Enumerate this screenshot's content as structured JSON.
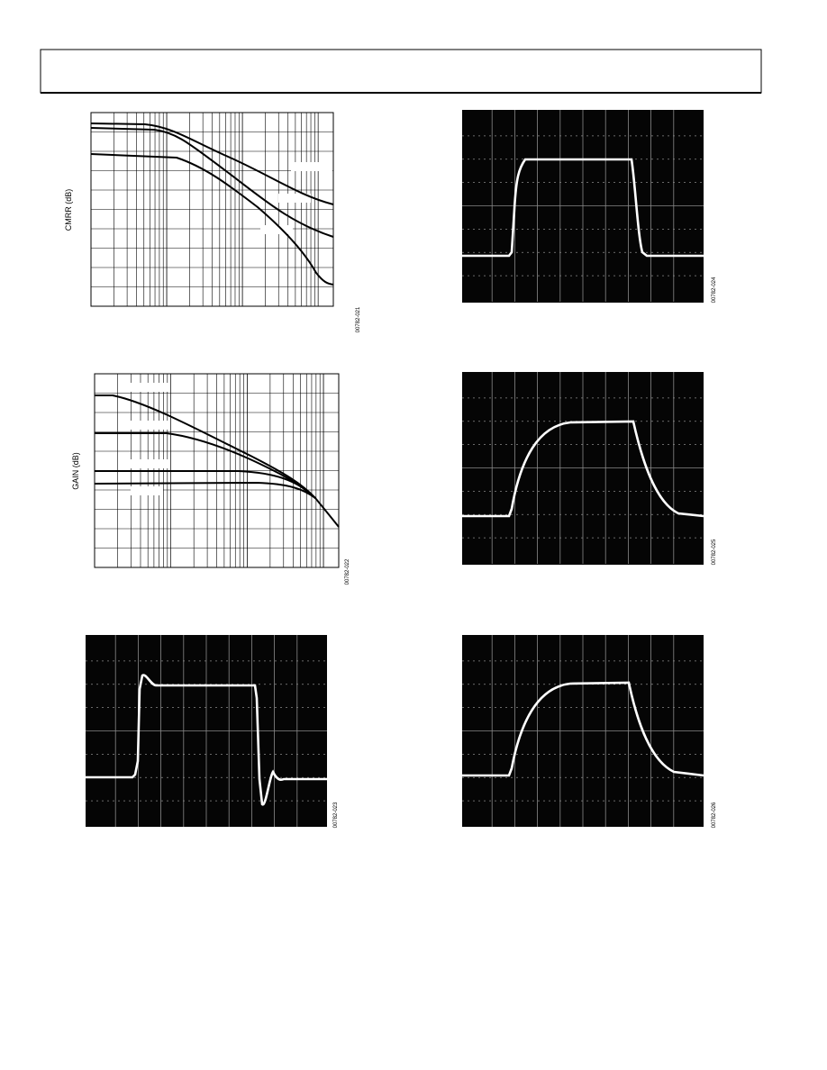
{
  "plots": [
    {
      "y_label": "CMRR (dB)",
      "figure_id": "00782-021"
    },
    {
      "y_label": "GAIN (dB)",
      "figure_id": "00782-022"
    }
  ],
  "scope_images": [
    {
      "figure_id": "00782-023"
    },
    {
      "figure_id": "00782-024"
    },
    {
      "figure_id": "00782-025"
    },
    {
      "figure_id": "00782-026"
    }
  ]
}
